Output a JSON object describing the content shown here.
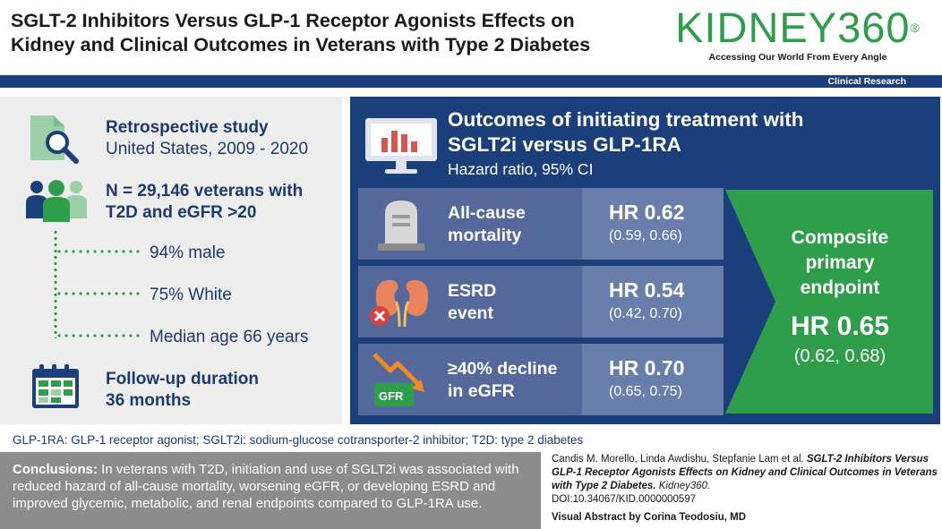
{
  "header": {
    "title_line1": "SGLT-2 Inhibitors Versus GLP-1 Receptor Agonists Effects on",
    "title_line2": "Kidney and Clinical Outcomes in Veterans with Type 2 Diabetes",
    "journal": "KIDNEY360",
    "journal_mark": "®",
    "tagline": "Accessing Our World From Every Angle",
    "category": "Clinical Research"
  },
  "study": {
    "design_title": "Retrospective study",
    "design_detail": "United States, 2009 - 2020",
    "population_line1": "N = 29,146 veterans with",
    "population_line2": "T2D and eGFR >20",
    "characteristics": [
      "94% male",
      "75% White",
      "Median age 66 years"
    ],
    "followup_line1": "Follow-up duration",
    "followup_line2": "36 months"
  },
  "outcomes": {
    "title_line1": "Outcomes of initiating treatment with",
    "title_line2": "SGLT2i versus GLP-1RA",
    "subtitle": "Hazard ratio, 95% CI",
    "rows": [
      {
        "label_line1": "All-cause",
        "label_line2": "mortality",
        "hr": "HR 0.62",
        "ci": "(0.59, 0.66)"
      },
      {
        "label_line1": "ESRD",
        "label_line2": "event",
        "hr": "HR 0.54",
        "ci": "(0.42, 0.70)"
      },
      {
        "label_line1": "≥40% decline",
        "label_line2": "in eGFR",
        "hr": "HR 0.70",
        "ci": "(0.65, 0.75)"
      }
    ],
    "composite_line1": "Composite",
    "composite_line2": "primary",
    "composite_line3": "endpoint",
    "composite_hr": "HR 0.65",
    "composite_ci": "(0.62, 0.68)",
    "gfr_icon_label": "GFR"
  },
  "footnote": "GLP-1RA: GLP-1 receptor agonist; SGLT2i: sodium-glucose cotransporter-2 inhibitor; T2D: type 2 diabetes",
  "conclusions": {
    "label": "Conclusions:",
    "text": " In veterans with T2D, initiation and use of SGLT2i was associated with reduced hazard of all-cause mortality, worsening eGFR, or developing ESRD and improved glycemic, metabolic, and renal endpoints compared to GLP-1RA use."
  },
  "citation": {
    "authors": "Candis M. Morello, Linda Awdishu, Stepfanie Lam et al. ",
    "title": "SGLT-2 Inhibitors Versus GLP-1 Receptor Agonists Effects on Kidney and Clinical Outcomes in Veterans with Type 2 Diabetes.",
    "journal": " Kidney360.",
    "doi": "DOI:10.34067/KID.0000000597",
    "credit": "Visual Abstract by Corina Teodosiu, MD"
  },
  "colors": {
    "navy": "#1b3f7a",
    "green": "#2e9e4a",
    "row": "#55689b",
    "hr_box": "#6a7eab",
    "gray_panel": "#eeeeee",
    "conclusion_bg": "#8c8c8c"
  }
}
